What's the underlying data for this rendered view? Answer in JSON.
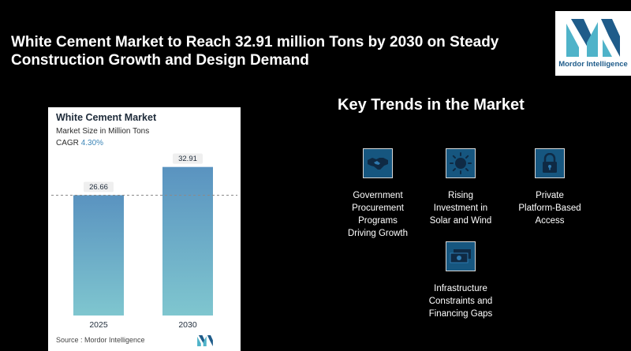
{
  "headline": "White Cement Market to Reach 32.91 million Tons by 2030 on Steady Construction Growth and Design Demand",
  "brand": {
    "name": "Mordor Intelligence",
    "color_light": "#4fb3c9",
    "color_dark": "#1f5c8a"
  },
  "chart_data": {
    "type": "bar",
    "title": "White Cement Market",
    "subtitle": "Market Size in Million Tons",
    "cagr_label": "CAGR",
    "cagr_value": "4.30%",
    "categories": [
      "2025",
      "2030"
    ],
    "values": [
      26.66,
      32.91
    ],
    "value_labels": [
      "26.66",
      "32.91"
    ],
    "ylim": [
      0,
      36
    ],
    "reference_line": 26.66,
    "bar_color_top": "#5a93c0",
    "bar_color_bottom": "#7fc6cf",
    "source": "Source :  Mordor Intelligence"
  },
  "trends": {
    "title": "Key Trends in the Market",
    "items": [
      {
        "icon": "handshake-icon",
        "label": [
          "Government",
          "Procurement",
          "Programs",
          "Driving Growth"
        ]
      },
      {
        "icon": "sun-icon",
        "label": [
          "Rising",
          "Investment in",
          "Solar and Wind"
        ]
      },
      {
        "icon": "lock-icon",
        "label": [
          "Private",
          "Platform-Based",
          "Access"
        ]
      },
      {
        "icon": "money-icon",
        "label": [
          "Infrastructure",
          "Constraints and",
          "Financing Gaps"
        ]
      }
    ]
  }
}
